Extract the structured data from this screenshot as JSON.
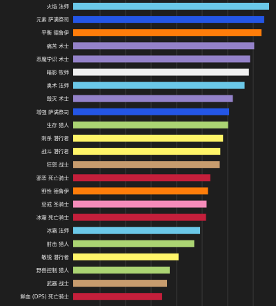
{
  "chart_data": {
    "type": "bar",
    "orientation": "horizontal",
    "title": "",
    "xlabel": "",
    "ylabel": "",
    "xlim": [
      0,
      100
    ],
    "grid": "vertical",
    "categories": [
      "火焰 法师",
      "元素 萨满祭司",
      "平衡 德鲁伊",
      "痛苦 术士",
      "恶魔学识 术士",
      "暗影 牧师",
      "奥术 法师",
      "毁灭 术士",
      "增强 萨满祭司",
      "生存 猎人",
      "刺杀 潜行者",
      "战斗 潜行者",
      "狂怒 战士",
      "邪恶 死亡骑士",
      "野性 德鲁伊",
      "惩戒 圣骑士",
      "冰霜 死亡骑士",
      "冰霜 法师",
      "射击 猎人",
      "敏锐 潜行者",
      "野兽控制 猎人",
      "武器 战士",
      "鲜血 (DPS) 死亡骑士",
      "防护 战士"
    ],
    "values": [
      100,
      97.5,
      96.1,
      92.4,
      90.3,
      89.7,
      87.5,
      81.5,
      79.6,
      79.1,
      76.5,
      75.1,
      74.8,
      70.0,
      68.8,
      68.1,
      67.8,
      64.8,
      61.8,
      53.8,
      49.3,
      47.9,
      45.4,
      36.6
    ],
    "colors": [
      "#6bc8e8",
      "#2456e6",
      "#ff7d0a",
      "#9482c9",
      "#9482c9",
      "#f0f0f0",
      "#6bc8e8",
      "#9482c9",
      "#2456e6",
      "#abd473",
      "#fff569",
      "#fff569",
      "#c79c6e",
      "#c41f3b",
      "#ff7d0a",
      "#f58cba",
      "#c41f3b",
      "#6bc8e8",
      "#abd473",
      "#fff569",
      "#abd473",
      "#c79c6e",
      "#c41f3b",
      "#c79c6e"
    ]
  },
  "style": {
    "background": "#1e1e1e",
    "label_color": "#e6e6e6",
    "grid_color": "#3a3a3a"
  }
}
